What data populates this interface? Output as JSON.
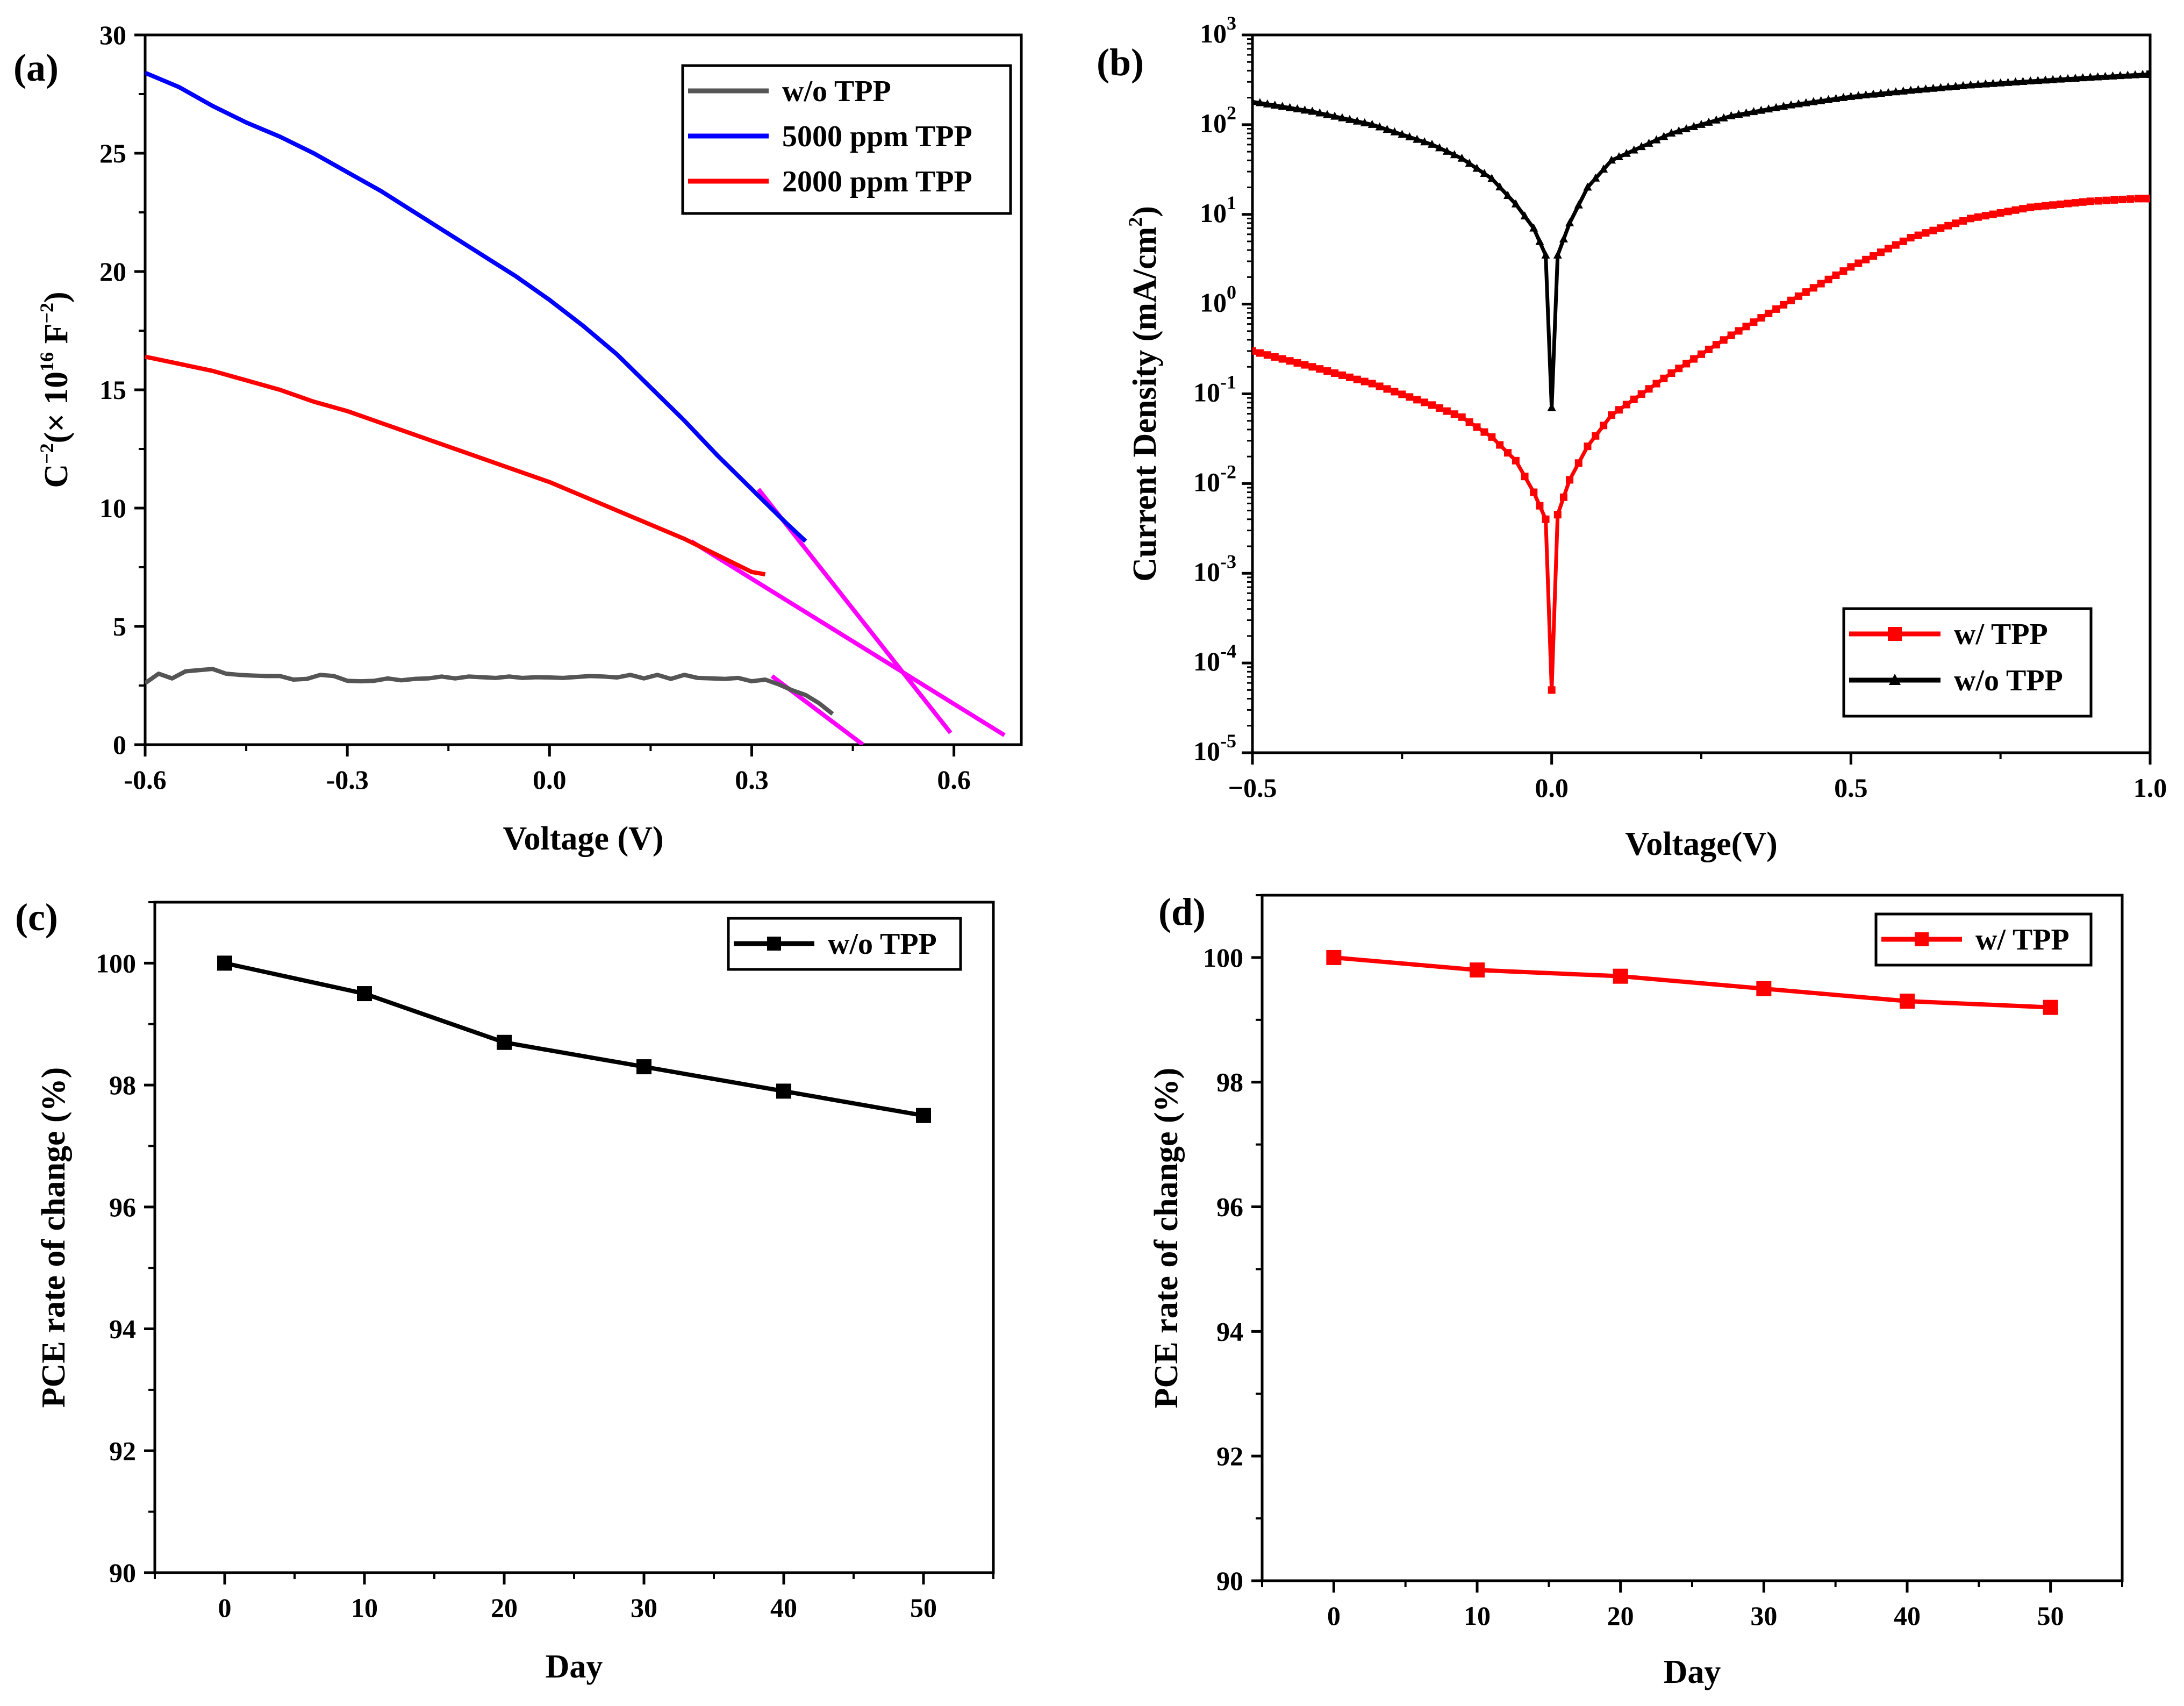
{
  "figure": {
    "panels": [
      "(a)",
      "(b)",
      "(c)",
      "(d)"
    ]
  },
  "chart_data": [
    {
      "id": "a",
      "type": "line",
      "panel_label": "(a)",
      "xlabel": "Voltage (V)",
      "ylabel_parts": {
        "base": "C",
        "base_sup": "−2",
        "mid": "(× 10",
        "mid_sup": "16",
        "unit": " F",
        "unit_sup": "−2",
        "close": ")"
      },
      "xlim": [
        -0.6,
        0.7
      ],
      "ylim": [
        0,
        30
      ],
      "xticks": [
        -0.6,
        -0.3,
        0.0,
        0.3,
        0.6
      ],
      "xtick_labels": [
        "-0.6",
        "-0.3",
        "0.0",
        "0.3",
        "0.6"
      ],
      "yticks": [
        0,
        5,
        10,
        15,
        20,
        25,
        30
      ],
      "ytick_labels": [
        "0",
        "5",
        "10",
        "15",
        "20",
        "25",
        "30"
      ],
      "legend_position": "top-right",
      "series": [
        {
          "name": "w/o TPP",
          "color": "#555555",
          "x": [
            -0.6,
            -0.58,
            -0.56,
            -0.54,
            -0.52,
            -0.5,
            -0.48,
            -0.46,
            -0.44,
            -0.42,
            -0.4,
            -0.38,
            -0.36,
            -0.34,
            -0.32,
            -0.3,
            -0.28,
            -0.26,
            -0.24,
            -0.22,
            -0.2,
            -0.18,
            -0.16,
            -0.14,
            -0.12,
            -0.1,
            -0.08,
            -0.06,
            -0.04,
            -0.02,
            0.0,
            0.02,
            0.04,
            0.06,
            0.08,
            0.1,
            0.12,
            0.14,
            0.16,
            0.18,
            0.2,
            0.22,
            0.24,
            0.26,
            0.28,
            0.3,
            0.32,
            0.34,
            0.36,
            0.38,
            0.4,
            0.42
          ],
          "values": [
            2.6,
            3.0,
            2.8,
            3.1,
            3.15,
            3.2,
            3.0,
            2.95,
            2.92,
            2.9,
            2.9,
            2.75,
            2.78,
            2.95,
            2.9,
            2.7,
            2.68,
            2.7,
            2.8,
            2.72,
            2.78,
            2.8,
            2.88,
            2.8,
            2.88,
            2.85,
            2.82,
            2.88,
            2.82,
            2.85,
            2.84,
            2.82,
            2.86,
            2.9,
            2.88,
            2.84,
            2.95,
            2.8,
            2.95,
            2.78,
            2.95,
            2.82,
            2.8,
            2.78,
            2.82,
            2.68,
            2.75,
            2.55,
            2.3,
            2.1,
            1.75,
            1.3
          ]
        },
        {
          "name": "5000 ppm TPP",
          "color": "#0000ff",
          "x": [
            -0.6,
            -0.55,
            -0.5,
            -0.45,
            -0.4,
            -0.35,
            -0.3,
            -0.25,
            -0.2,
            -0.15,
            -0.1,
            -0.05,
            0.0,
            0.05,
            0.1,
            0.15,
            0.2,
            0.25,
            0.3,
            0.35,
            0.38
          ],
          "values": [
            28.4,
            27.8,
            27.0,
            26.3,
            25.7,
            25.0,
            24.2,
            23.4,
            22.5,
            21.6,
            20.7,
            19.8,
            18.8,
            17.7,
            16.5,
            15.1,
            13.7,
            12.2,
            10.8,
            9.4,
            8.6
          ]
        },
        {
          "name": "2000 ppm TPP",
          "color": "#ff0000",
          "x": [
            -0.6,
            -0.55,
            -0.5,
            -0.45,
            -0.4,
            -0.35,
            -0.3,
            -0.25,
            -0.2,
            -0.15,
            -0.1,
            -0.05,
            0.0,
            0.05,
            0.1,
            0.15,
            0.2,
            0.25,
            0.3,
            0.32
          ],
          "values": [
            16.4,
            16.1,
            15.8,
            15.4,
            15.0,
            14.5,
            14.1,
            13.6,
            13.1,
            12.6,
            12.1,
            11.6,
            11.1,
            10.5,
            9.9,
            9.3,
            8.7,
            8.0,
            7.3,
            7.2
          ]
        }
      ],
      "fit_lines": [
        {
          "color": "#ff00ff",
          "x": [
            0.31,
            0.595
          ],
          "values": [
            10.8,
            0.5
          ]
        },
        {
          "color": "#ff00ff",
          "x": [
            0.21,
            0.675
          ],
          "values": [
            8.6,
            0.4
          ]
        },
        {
          "color": "#ff00ff",
          "x": [
            0.33,
            0.465
          ],
          "values": [
            2.9,
            0.0
          ]
        }
      ]
    },
    {
      "id": "b",
      "type": "line",
      "panel_label": "(b)",
      "xlabel": "Voltage(V)",
      "ylabel_parts": {
        "base": "Current Density (mA/cm",
        "sup": "2",
        "close": ")"
      },
      "yscale": "log",
      "xlim": [
        -0.5,
        1.0
      ],
      "ylim_exp": [
        -5,
        3
      ],
      "xticks": [
        -0.5,
        0.0,
        0.5,
        1.0
      ],
      "xtick_labels": [
        "−0.5",
        "0.0",
        "0.5",
        "1.0"
      ],
      "ytick_exps": [
        -5,
        -4,
        -3,
        -2,
        -1,
        0,
        1,
        2,
        3
      ],
      "ytick_labels": [
        "-5",
        "-4",
        "-3",
        "-2",
        "-1",
        "0",
        "1",
        "2",
        "3"
      ],
      "ytick_base": "10",
      "legend_position": "bottom-right",
      "series": [
        {
          "name": "w/ TPP",
          "color": "#ff0000",
          "marker": "square",
          "x": [
            -0.5,
            -0.4,
            -0.3,
            -0.2,
            -0.15,
            -0.1,
            -0.06,
            -0.03,
            -0.01,
            0.0,
            0.01,
            0.03,
            0.06,
            0.1,
            0.2,
            0.3,
            0.4,
            0.5,
            0.6,
            0.7,
            0.8,
            0.9,
            0.98,
            1.0
          ],
          "values": [
            0.3,
            0.2,
            0.13,
            0.075,
            0.055,
            0.033,
            0.018,
            0.008,
            0.004,
            5e-05,
            0.0045,
            0.011,
            0.026,
            0.058,
            0.17,
            0.45,
            1.1,
            2.6,
            5.5,
            9.0,
            12.0,
            14.0,
            15.0,
            15.0
          ]
        },
        {
          "name": "w/o TPP",
          "color": "#000000",
          "marker": "triangle",
          "x": [
            -0.5,
            -0.4,
            -0.3,
            -0.2,
            -0.15,
            -0.1,
            -0.06,
            -0.03,
            -0.01,
            0.0,
            0.01,
            0.03,
            0.06,
            0.1,
            0.2,
            0.3,
            0.4,
            0.5,
            0.6,
            0.7,
            0.8,
            0.9,
            1.0
          ],
          "values": [
            180,
            140,
            100,
            60,
            42,
            25,
            13,
            7,
            3.5,
            0.07,
            3.5,
            8,
            20,
            40,
            80,
            125,
            165,
            205,
            240,
            275,
            305,
            335,
            365
          ]
        }
      ]
    },
    {
      "id": "c",
      "type": "line",
      "panel_label": "(c)",
      "xlabel": "Day",
      "ylabel": "PCE rate of change (%)",
      "xlim": [
        -5,
        55
      ],
      "ylim": [
        90,
        101
      ],
      "xticks": [
        0,
        10,
        20,
        30,
        40,
        50
      ],
      "xtick_labels": [
        "0",
        "10",
        "20",
        "30",
        "40",
        "50"
      ],
      "yticks": [
        90,
        92,
        94,
        96,
        98,
        100
      ],
      "ytick_labels": [
        "90",
        "92",
        "94",
        "96",
        "98",
        "100"
      ],
      "legend_position": "top-right",
      "series": [
        {
          "name": "w/o  TPP",
          "color": "#000000",
          "marker": "square",
          "x": [
            0,
            10,
            20,
            30,
            40,
            50
          ],
          "values": [
            100.0,
            99.5,
            98.7,
            98.3,
            97.9,
            97.5
          ]
        }
      ]
    },
    {
      "id": "d",
      "type": "line",
      "panel_label": "(d)",
      "xlabel": "Day",
      "ylabel": "PCE rate of change (%)",
      "xlim": [
        -5,
        55
      ],
      "ylim": [
        90,
        101
      ],
      "xticks": [
        0,
        10,
        20,
        30,
        40,
        50
      ],
      "xtick_labels": [
        "0",
        "10",
        "20",
        "30",
        "40",
        "50"
      ],
      "yticks": [
        90,
        92,
        94,
        96,
        98,
        100
      ],
      "ytick_labels": [
        "90",
        "92",
        "94",
        "96",
        "98",
        "100"
      ],
      "legend_position": "top-right",
      "series": [
        {
          "name": "w/ TPP",
          "color": "#ff0000",
          "marker": "square",
          "x": [
            0,
            10,
            20,
            30,
            40,
            50
          ],
          "values": [
            100.0,
            99.8,
            99.7,
            99.5,
            99.3,
            99.2
          ]
        }
      ]
    }
  ]
}
